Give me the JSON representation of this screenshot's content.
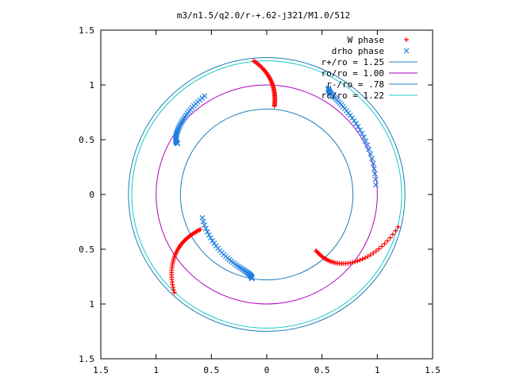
{
  "chart_data": {
    "type": "scatter",
    "title": "m3/n1.5/q2.0/r-+.62-j321/M1.0/512",
    "xlim": [
      -1.5,
      1.5
    ],
    "ylim": [
      -1.5,
      1.5
    ],
    "x_ticks": [
      "1.5",
      "1",
      "0.5",
      "0",
      "0.5",
      "1",
      "1.5"
    ],
    "y_ticks": [
      "1.5",
      "1",
      "0.5",
      "0",
      "0.5",
      "1",
      "1.5"
    ],
    "x_tick_values": [
      -1.5,
      -1,
      -0.5,
      0,
      0.5,
      1,
      1.5
    ],
    "y_tick_values": [
      1.5,
      1,
      0.5,
      0,
      -0.5,
      -1,
      -1.5
    ],
    "grid": false,
    "legend_position": "top-right",
    "colors": {
      "w_phase": "#ff0000",
      "drho_phase": "#1e7fe0",
      "r_plus": "#1e7fb8",
      "ro": "#b000c0",
      "r_minus": "#1e7fb8",
      "rc": "#18c8c8"
    },
    "series": [
      {
        "name": "W phase",
        "marker": "+",
        "color": "#ff0000",
        "arms": [
          {
            "start_r": 1.225,
            "end_r": 0.81,
            "start_deg": 95.5,
            "end_deg": 85
          },
          {
            "start_r": 1.225,
            "end_r": 0.68,
            "start_deg": -14,
            "end_deg": -49
          },
          {
            "start_r": 1.225,
            "end_r": 0.68,
            "start_deg": -133,
            "end_deg": -152
          }
        ]
      },
      {
        "name": "drho phase",
        "marker": "x",
        "color": "#1e7fe0",
        "arms": [
          {
            "start_r": 0.99,
            "end_r": 1.12,
            "start_deg": 5.0,
            "end_deg": 60.0
          },
          {
            "start_r": 1.06,
            "end_r": 0.93,
            "start_deg": 122.0,
            "end_deg": 150.0
          },
          {
            "start_r": 0.62,
            "end_r": 0.78,
            "start_deg": 200.0,
            "end_deg": 260.0
          }
        ]
      },
      {
        "name": "r+/ro = 1.25",
        "type": "circle",
        "radius": 1.25,
        "color": "#1e7fb8"
      },
      {
        "name": "ro/ro = 1.00",
        "type": "circle",
        "radius": 1.0,
        "color": "#b000c0"
      },
      {
        "name": "r-/ro = .78",
        "type": "circle",
        "radius": 0.78,
        "color": "#1e7fb8"
      },
      {
        "name": "rc/ro = 1.22",
        "type": "circle",
        "radius": 1.22,
        "color": "#18c8c8"
      }
    ]
  }
}
